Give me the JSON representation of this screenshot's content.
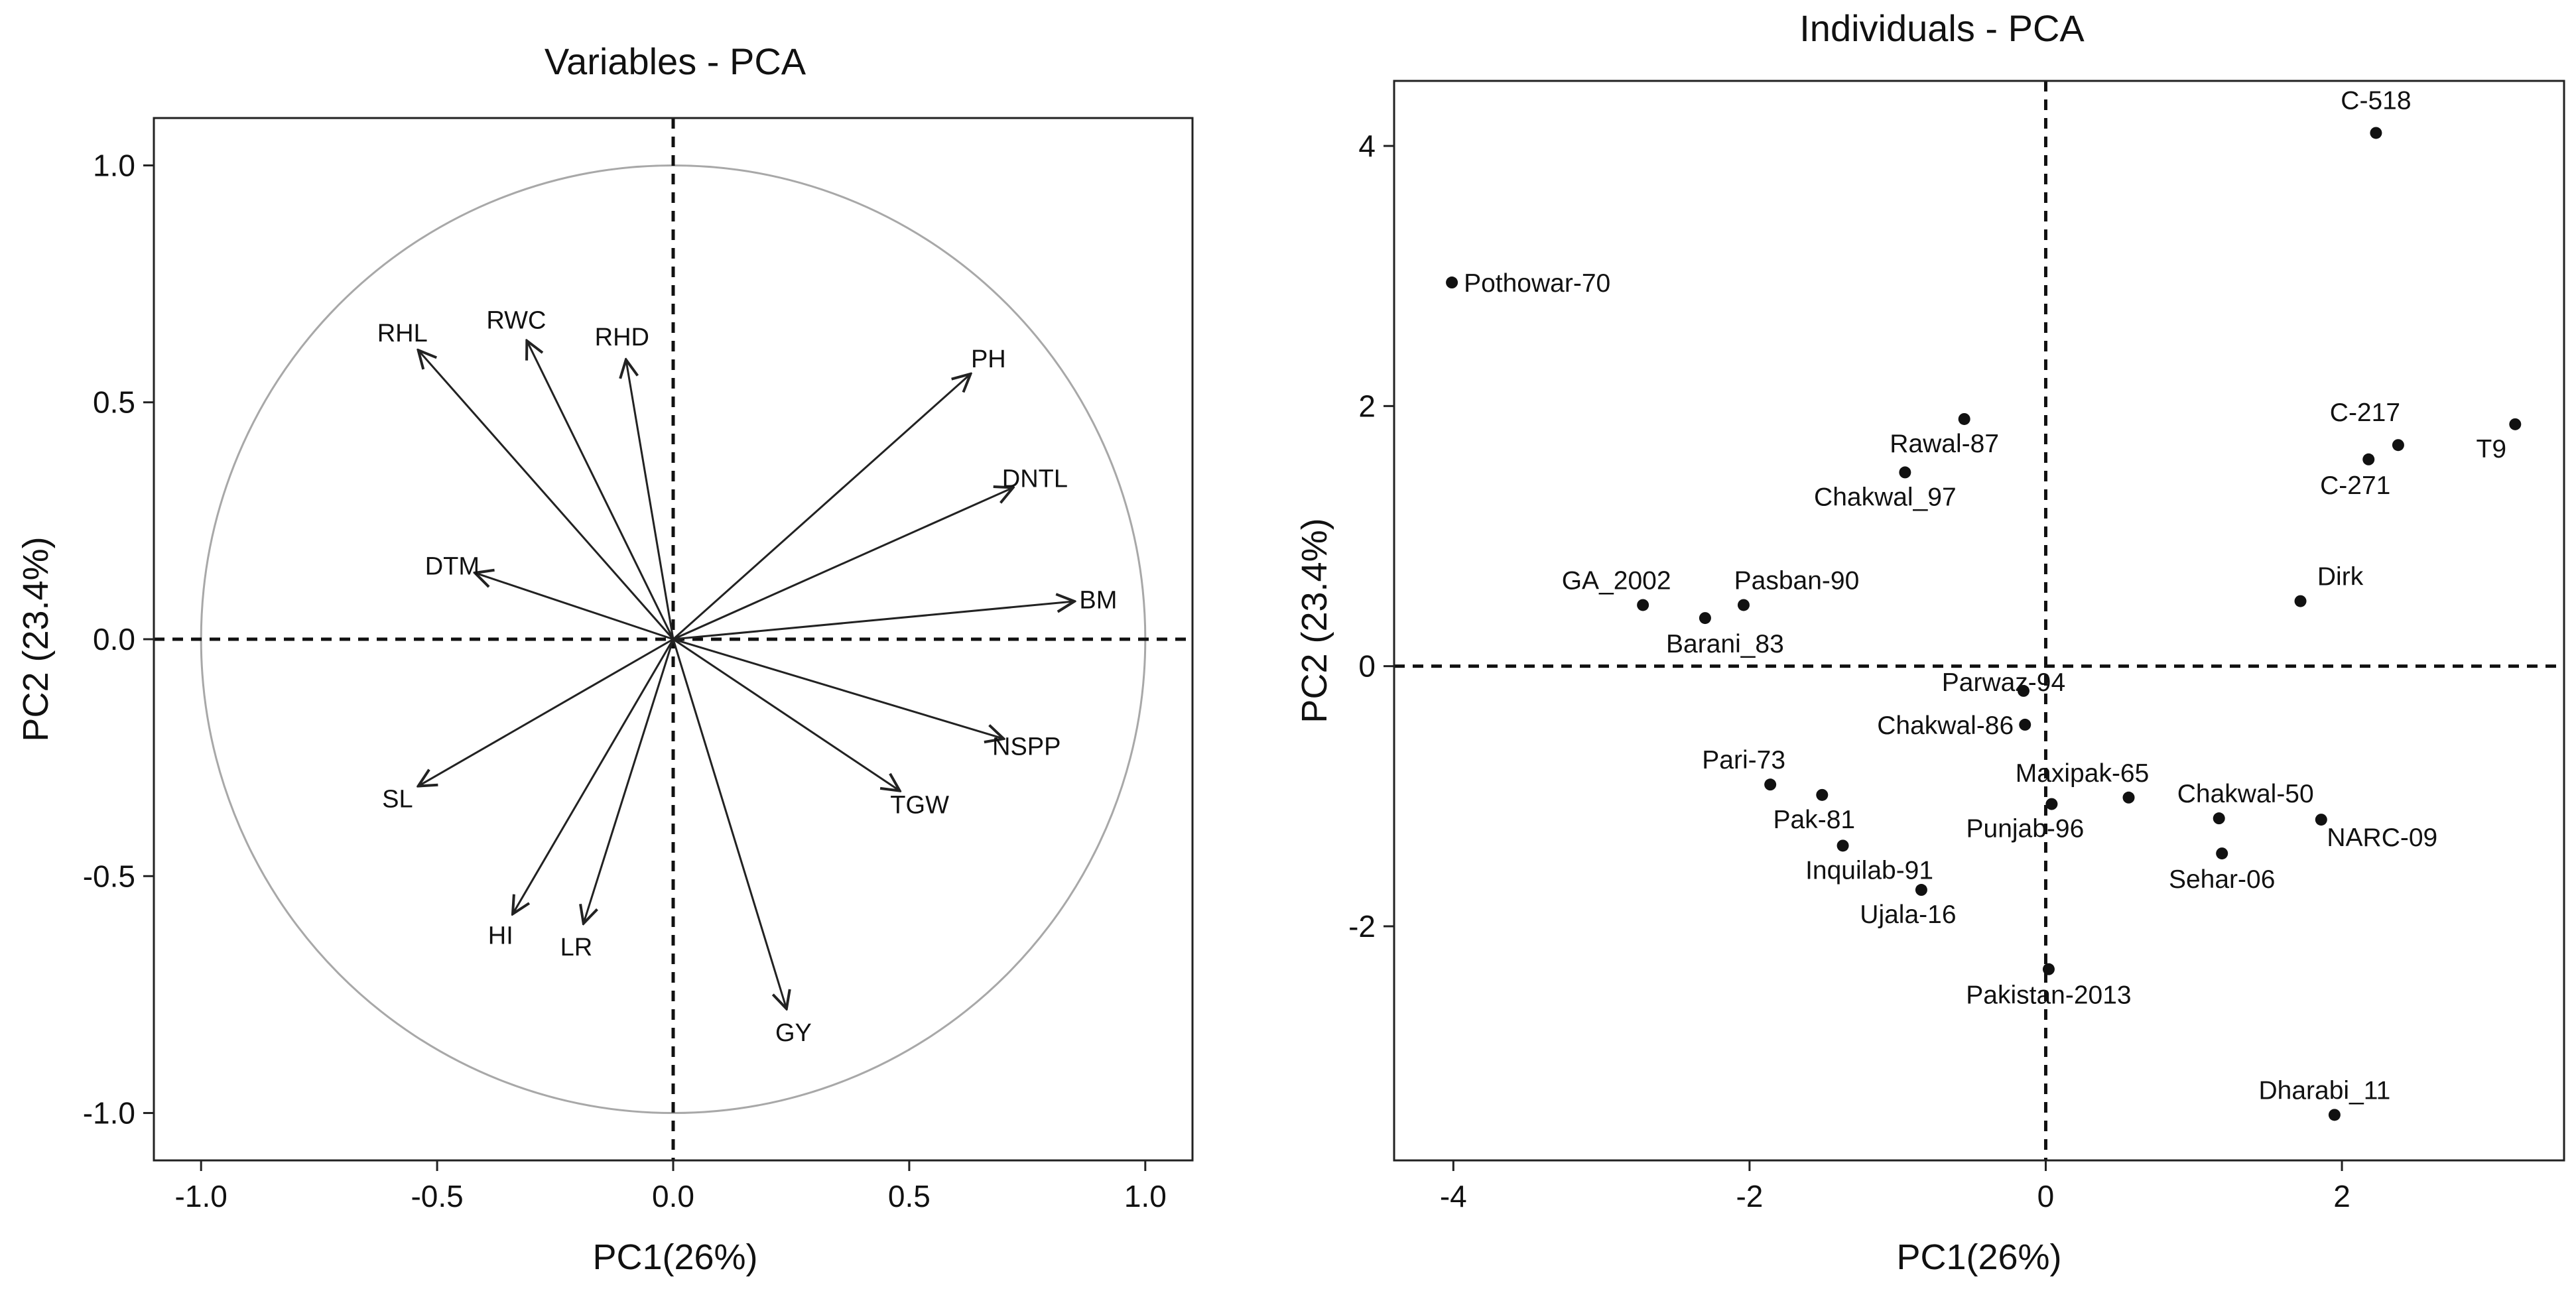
{
  "chart_data": [
    {
      "type": "pca-variables",
      "title": "Variables - PCA",
      "xlabel": "PC1(26%)",
      "ylabel": "PC2 (23.4%)",
      "xlim": [
        -1.1,
        1.1
      ],
      "ylim": [
        -1.1,
        1.1
      ],
      "xticks": [
        -1.0,
        -0.5,
        0.0,
        0.5,
        1.0
      ],
      "yticks": [
        -1.0,
        -0.5,
        0.0,
        0.5,
        1.0
      ],
      "xtick_labels": [
        "-1.0",
        "-0.5",
        "0.0",
        "0.5",
        "1.0"
      ],
      "ytick_labels": [
        "-1.0",
        "-0.5",
        "0.0",
        "0.5",
        "1.0"
      ],
      "correlation_circle_radius": 1.0,
      "reference_lines": {
        "x": 0,
        "y": 0
      },
      "vectors": [
        {
          "name": "RHL",
          "x": -0.54,
          "y": 0.61
        },
        {
          "name": "RWC",
          "x": -0.31,
          "y": 0.63
        },
        {
          "name": "RHD",
          "x": -0.1,
          "y": 0.59
        },
        {
          "name": "PH",
          "x": 0.63,
          "y": 0.56
        },
        {
          "name": "DNTL",
          "x": 0.72,
          "y": 0.32
        },
        {
          "name": "BM",
          "x": 0.85,
          "y": 0.08
        },
        {
          "name": "DTM",
          "x": -0.42,
          "y": 0.14
        },
        {
          "name": "NSPP",
          "x": 0.7,
          "y": -0.21
        },
        {
          "name": "TGW",
          "x": 0.48,
          "y": -0.32
        },
        {
          "name": "SL",
          "x": -0.54,
          "y": -0.31
        },
        {
          "name": "HI",
          "x": -0.34,
          "y": -0.58
        },
        {
          "name": "LR",
          "x": -0.19,
          "y": -0.6
        },
        {
          "name": "GY",
          "x": 0.24,
          "y": -0.78
        }
      ]
    },
    {
      "type": "pca-individuals",
      "title": "Individuals - PCA",
      "xlabel": "PC1(26%)",
      "ylabel": "PC2 (23.4%)",
      "xlim": [
        -4.4,
        3.5
      ],
      "ylim": [
        -3.8,
        4.5
      ],
      "xticks": [
        -4,
        -2,
        0,
        2
      ],
      "yticks": [
        -2,
        0,
        2,
        4
      ],
      "xtick_labels": [
        "-4",
        "-2",
        "0",
        "2"
      ],
      "ytick_labels": [
        "-2",
        "0",
        "2",
        "4"
      ],
      "reference_lines": {
        "x": 0,
        "y": 0
      },
      "points": [
        {
          "name": "C-518",
          "x": 2.23,
          "y": 4.1
        },
        {
          "name": "Pothowar-70",
          "x": -4.01,
          "y": 2.95
        },
        {
          "name": "Rawal-87",
          "x": -0.55,
          "y": 1.9
        },
        {
          "name": "Chakwal_97",
          "x": -0.95,
          "y": 1.49
        },
        {
          "name": "C-217",
          "x": 2.38,
          "y": 1.7
        },
        {
          "name": "T9",
          "x": 3.17,
          "y": 1.86
        },
        {
          "name": "C-271",
          "x": 2.18,
          "y": 1.59
        },
        {
          "name": "GA_2002",
          "x": -2.72,
          "y": 0.47
        },
        {
          "name": "Pasban-90",
          "x": -2.04,
          "y": 0.47
        },
        {
          "name": "Barani_83",
          "x": -2.3,
          "y": 0.37
        },
        {
          "name": "Dirk",
          "x": 1.72,
          "y": 0.5
        },
        {
          "name": "Parwaz-94",
          "x": -0.15,
          "y": -0.19
        },
        {
          "name": "Chakwal-86",
          "x": -0.14,
          "y": -0.45
        },
        {
          "name": "Pari-73",
          "x": -1.86,
          "y": -0.91
        },
        {
          "name": "Pak-81",
          "x": -1.51,
          "y": -0.99
        },
        {
          "name": "Maxipak-65",
          "x": 0.56,
          "y": -1.01
        },
        {
          "name": "Punjab-96",
          "x": 0.04,
          "y": -1.06
        },
        {
          "name": "Chakwal-50",
          "x": 1.17,
          "y": -1.17
        },
        {
          "name": "NARC-09",
          "x": 1.86,
          "y": -1.18
        },
        {
          "name": "Inquilab-91",
          "x": -1.37,
          "y": -1.38
        },
        {
          "name": "Sehar-06",
          "x": 1.19,
          "y": -1.44
        },
        {
          "name": "Ujala-16",
          "x": -0.84,
          "y": -1.72
        },
        {
          "name": "Pakistan-2013",
          "x": 0.02,
          "y": -2.33
        },
        {
          "name": "Dharabi_11",
          "x": 1.95,
          "y": -3.45
        }
      ]
    }
  ]
}
